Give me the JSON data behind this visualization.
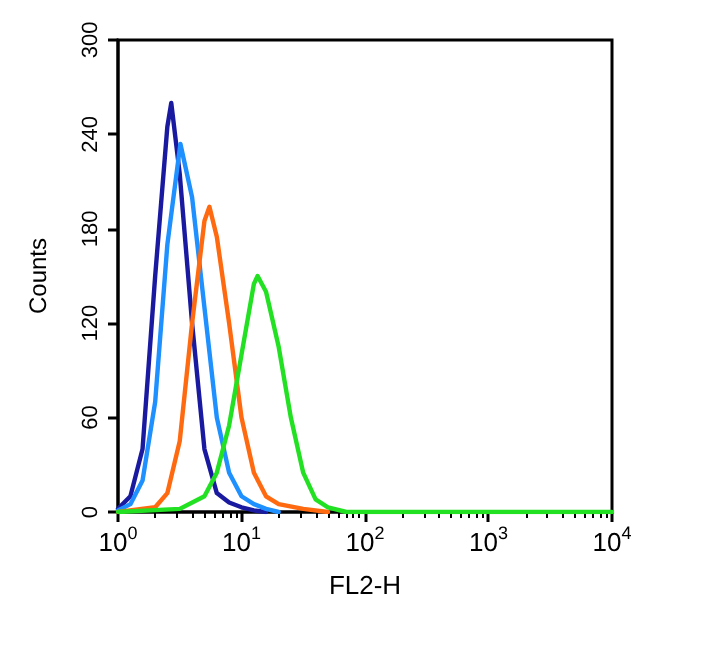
{
  "chart_data": {
    "type": "line",
    "xlabel": "FL2-H",
    "ylabel": "Counts",
    "log": "x",
    "grid": false,
    "marker": "none",
    "line_style": "solid",
    "xlim": [
      1,
      10000
    ],
    "xticks": [
      {
        "value": 1,
        "label": "10$^{0}$"
      },
      {
        "value": 10,
        "label": "10$^{1}$"
      },
      {
        "value": 100,
        "label": "10$^{2}$"
      },
      {
        "value": 1000,
        "label": "10$^{3}$"
      },
      {
        "value": 10000,
        "label": "10$^{4}$"
      }
    ],
    "ylim": [
      0,
      300
    ],
    "yticks": [
      0,
      60,
      120,
      180,
      240,
      300
    ],
    "series": [
      {
        "color": "#1a1aa0",
        "x": [
          1,
          1.26,
          1.58,
          2.0,
          2.51,
          2.7,
          3.16,
          3.98,
          5.01,
          6.31,
          7.94,
          10,
          12.6,
          15.8
        ],
        "values": [
          2,
          10,
          40,
          150,
          245,
          260,
          215,
          120,
          40,
          12,
          6,
          3,
          1,
          0
        ]
      },
      {
        "color": "#1e90ff",
        "x": [
          1,
          1.26,
          1.58,
          2.0,
          2.51,
          3.2,
          3.98,
          5.01,
          6.31,
          7.94,
          10,
          12.6,
          15.8,
          20
        ],
        "values": [
          1,
          5,
          20,
          70,
          170,
          234,
          200,
          130,
          60,
          25,
          10,
          5,
          2,
          0
        ]
      },
      {
        "color": "#ff6a10",
        "x": [
          1,
          2.0,
          2.51,
          3.16,
          3.98,
          5.01,
          5.5,
          6.31,
          7.94,
          10,
          12.6,
          15.8,
          20,
          31.6,
          50.1
        ],
        "values": [
          0,
          3,
          12,
          45,
          120,
          185,
          194,
          175,
          120,
          60,
          25,
          10,
          5,
          2,
          0
        ]
      },
      {
        "color": "#22e022",
        "x": [
          1,
          3.16,
          5.01,
          6.31,
          7.94,
          10,
          12.6,
          13.5,
          15.8,
          20,
          25.1,
          31.6,
          39.8,
          50.1,
          70.8,
          10000
        ],
        "values": [
          0,
          2,
          10,
          25,
          55,
          100,
          145,
          150,
          140,
          105,
          60,
          25,
          8,
          3,
          0,
          0
        ]
      }
    ]
  }
}
